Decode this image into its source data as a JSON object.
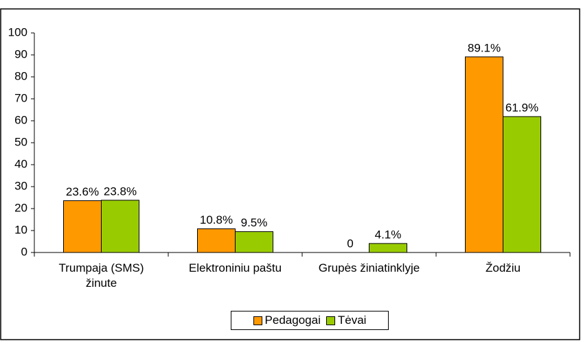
{
  "chart_data": {
    "type": "bar",
    "categories": [
      "Trumpaja (SMS) žinute",
      "Elektroniniu paštu",
      "Grupės žiniatinklyje",
      "Žodžiu"
    ],
    "series": [
      {
        "name": "Pedagogai",
        "color": "#ff9900",
        "values": [
          23.6,
          10.8,
          0,
          89.1
        ],
        "value_labels": [
          "23.6%",
          "10.8%",
          "0",
          "89.1%"
        ]
      },
      {
        "name": "Tėvai",
        "color": "#99cc00",
        "values": [
          23.8,
          9.5,
          4.1,
          61.9
        ],
        "value_labels": [
          "23.8%",
          "9.5%",
          "4.1%",
          "61.9%"
        ]
      }
    ],
    "ylim": [
      0,
      100
    ],
    "yticks": [
      0,
      10,
      20,
      30,
      40,
      50,
      60,
      70,
      80,
      90,
      100
    ],
    "grid": false,
    "legend": "bottom"
  }
}
